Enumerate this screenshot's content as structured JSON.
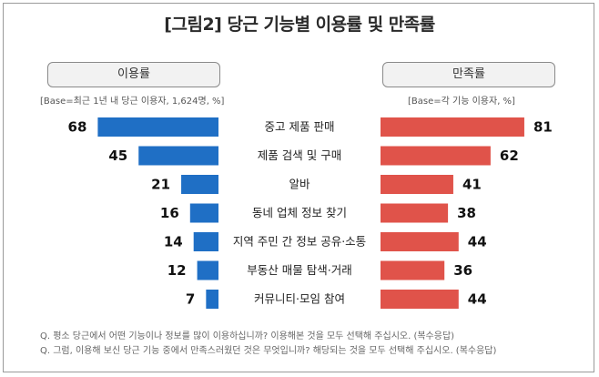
{
  "page": {
    "title": "[그림2] 당근 기능별 이용률 및 만족률",
    "left_header": "이용률",
    "right_header": "만족률",
    "left_base": "[Base=최근 1년 내 당근 이용자, 1,624명, %]",
    "right_base": "[Base=각 기능 이용자, %]",
    "notes": [
      "Q. 평소 당근에서 어떤 기능이나 정보를 많이 이용하십니까? 이용해본 것을 모두 선택해 주십시오. (복수응답)",
      "Q. 그럼, 이용해 보신 당근 기능 중에서 만족스러웠던 것은 무엇입니까? 해당되는 것을 모두 선택해 주십시오. (복수응답)"
    ]
  },
  "colors": {
    "usage": "#1f6fc5",
    "satisfaction": "#e0534a"
  },
  "chart_data": {
    "type": "bar",
    "categories": [
      "중고 제품 판매",
      "제품 검색 및 구매",
      "알바",
      "동네 업체 정보 찾기",
      "지역 주민 간 정보 공유·소통",
      "부동산 매물 탐색·거래",
      "커뮤니티·모임 참여"
    ],
    "series": [
      {
        "name": "이용률",
        "values": [
          68,
          45,
          21,
          16,
          14,
          12,
          7
        ]
      },
      {
        "name": "만족률",
        "values": [
          81,
          62,
          41,
          38,
          44,
          36,
          44
        ]
      }
    ],
    "value_labels": {
      "usage": [
        "68",
        "45",
        "21",
        "16",
        "14",
        "12",
        "7"
      ],
      "satisfaction": [
        "81",
        "62",
        "41",
        "38",
        "44",
        "36",
        "44"
      ]
    }
  }
}
